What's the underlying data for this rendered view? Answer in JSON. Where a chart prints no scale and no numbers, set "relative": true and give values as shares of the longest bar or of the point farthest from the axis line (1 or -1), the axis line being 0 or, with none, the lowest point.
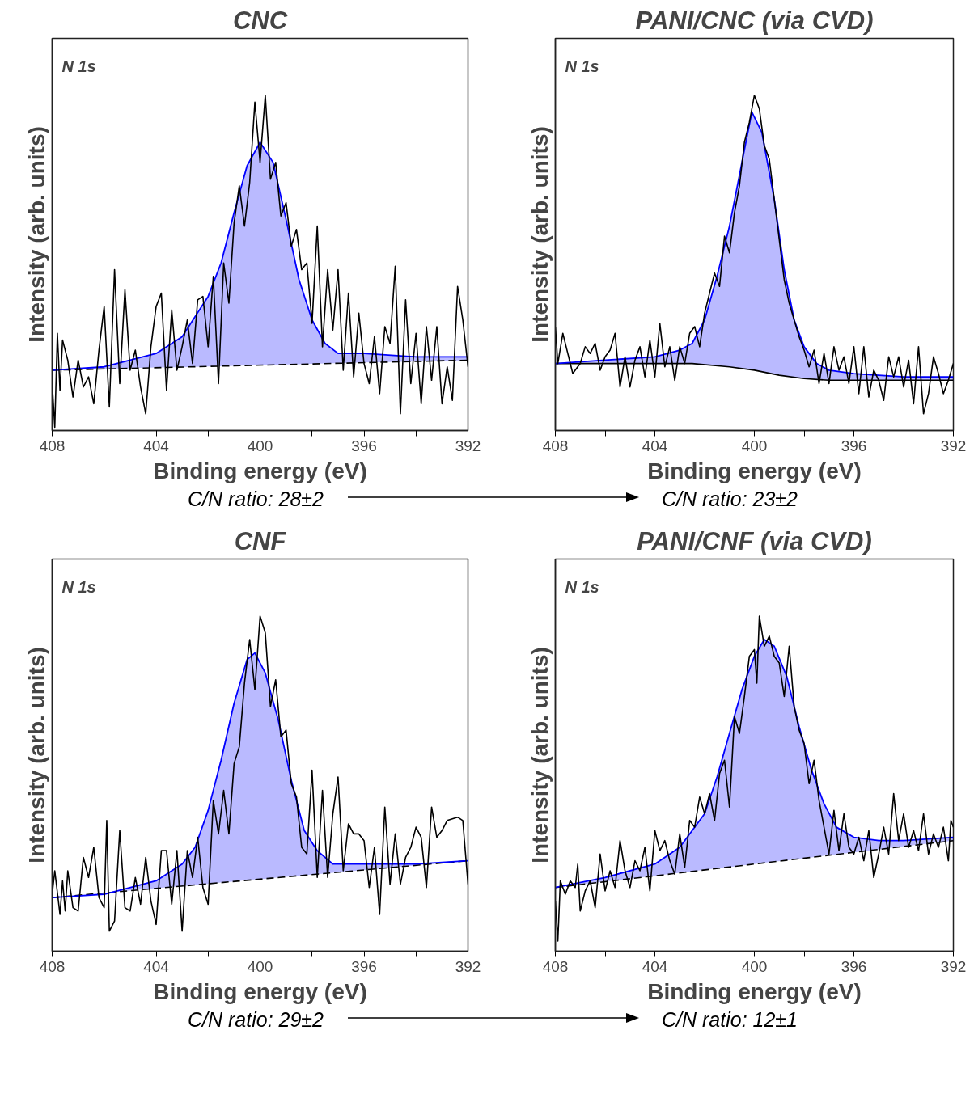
{
  "chart_data": [
    {
      "type": "line",
      "title": "CNC",
      "xlabel": "Binding energy (eV)",
      "ylabel": "Intensity (arb. units)",
      "annotations": [
        "N 1s",
        "C/N ratio: 28±2"
      ],
      "relative": true,
      "xlim": [
        408,
        392
      ],
      "xticks": [
        408,
        {
          "value": 406,
          "label": null
        },
        404,
        {
          "value": 402,
          "label": null
        },
        400,
        {
          "value": 398,
          "label": null
        },
        396,
        {
          "value": 394,
          "label": null
        },
        392
      ],
      "series": [
        {
          "color": "#000000",
          "line_style": "dashed",
          "x": [
            408,
            392
          ],
          "values": [
            0.18,
            0.21
          ]
        },
        {
          "color": "#0000ff",
          "x": [
            408,
            406,
            404,
            403,
            402,
            401.5,
            401,
            400.5,
            400,
            399.5,
            399,
            398.5,
            398,
            397.5,
            397,
            396,
            394,
            392
          ],
          "values": [
            0.18,
            0.19,
            0.23,
            0.28,
            0.4,
            0.5,
            0.65,
            0.79,
            0.86,
            0.8,
            0.63,
            0.45,
            0.33,
            0.26,
            0.23,
            0.23,
            0.22,
            0.22
          ],
          "upper": [
            0.18,
            0.19,
            0.23,
            0.28,
            0.4,
            0.5,
            0.65,
            0.79,
            0.86,
            0.8,
            0.63,
            0.45,
            0.33,
            0.26,
            0.23,
            0.23,
            0.22,
            0.22
          ],
          "lower": [
            0.18,
            0.184,
            0.188,
            0.189,
            0.191,
            0.192,
            0.193,
            0.194,
            0.195,
            0.196,
            0.197,
            0.198,
            0.199,
            0.2,
            0.201,
            0.203,
            0.206,
            0.21
          ]
        },
        {
          "color": "#000000",
          "x": [
            408,
            407.9,
            407.8,
            407.7,
            407.6,
            407.4,
            407.2,
            407,
            406.8,
            406.6,
            406.4,
            406.2,
            406,
            405.8,
            405.6,
            405.4,
            405.2,
            405,
            404.8,
            404.6,
            404.4,
            404.2,
            404,
            403.8,
            403.6,
            403.4,
            403.2,
            403,
            402.8,
            402.6,
            402.4,
            402.2,
            402,
            401.8,
            401.6,
            401.4,
            401.2,
            401,
            400.8,
            400.6,
            400.4,
            400.2,
            400,
            399.8,
            399.6,
            399.4,
            399.2,
            399,
            398.8,
            398.6,
            398.4,
            398.2,
            398,
            397.8,
            397.6,
            397.4,
            397.2,
            397,
            396.8,
            396.6,
            396.4,
            396.2,
            396,
            395.8,
            395.6,
            395.4,
            395.2,
            395,
            394.8,
            394.6,
            394.4,
            394.2,
            394,
            393.8,
            393.6,
            393.4,
            393.2,
            393,
            392.8,
            392.6,
            392.4,
            392.2,
            392
          ],
          "values": [
            0.14,
            0.01,
            0.29,
            0.12,
            0.27,
            0.21,
            0.1,
            0.21,
            0.13,
            0.16,
            0.08,
            0.24,
            0.37,
            0.07,
            0.48,
            0.14,
            0.42,
            0.18,
            0.24,
            0.13,
            0.05,
            0.25,
            0.37,
            0.41,
            0.12,
            0.36,
            0.18,
            0.25,
            0.33,
            0.2,
            0.39,
            0.4,
            0.25,
            0.46,
            0.14,
            0.5,
            0.38,
            0.62,
            0.73,
            0.61,
            0.74,
            0.98,
            0.8,
            1.0,
            0.75,
            0.8,
            0.64,
            0.68,
            0.55,
            0.6,
            0.48,
            0.5,
            0.32,
            0.61,
            0.25,
            0.48,
            0.3,
            0.48,
            0.18,
            0.41,
            0.16,
            0.35,
            0.2,
            0.14,
            0.28,
            0.11,
            0.31,
            0.26,
            0.49,
            0.05,
            0.39,
            0.14,
            0.29,
            0.08,
            0.31,
            0.15,
            0.31,
            0.08,
            0.19,
            0.09,
            0.43,
            0.33,
            0.19
          ]
        }
      ]
    },
    {
      "type": "line",
      "title": "PANI/CNC (via CVD)",
      "xlabel": "Binding energy (eV)",
      "ylabel": "Intensity (arb. units)",
      "annotations": [
        "N 1s",
        "C/N ratio: 23±2"
      ],
      "relative": true,
      "xlim": [
        408,
        392
      ],
      "xticks": [
        408,
        {
          "value": 406,
          "label": null
        },
        404,
        {
          "value": 402,
          "label": null
        },
        400,
        {
          "value": 398,
          "label": null
        },
        396,
        {
          "value": 394,
          "label": null
        },
        392
      ],
      "series": [
        {
          "color": "#000000",
          "line_style": "solid",
          "x": [
            408,
            404,
            402.5,
            401,
            400,
            399,
            398,
            397,
            392
          ],
          "values": [
            0.2,
            0.2,
            0.2,
            0.19,
            0.18,
            0.165,
            0.155,
            0.15,
            0.15
          ]
        },
        {
          "color": "#0000ff",
          "x": [
            408,
            406,
            404,
            403,
            402.5,
            402,
            401.5,
            401,
            400.5,
            400.1,
            399.7,
            399.2,
            398.8,
            398.4,
            398,
            397.5,
            397,
            396,
            394,
            392
          ],
          "values": [
            0.2,
            0.21,
            0.22,
            0.24,
            0.26,
            0.33,
            0.46,
            0.61,
            0.8,
            0.95,
            0.89,
            0.69,
            0.48,
            0.33,
            0.25,
            0.2,
            0.18,
            0.17,
            0.16,
            0.16
          ],
          "upper": [
            0.2,
            0.21,
            0.22,
            0.24,
            0.26,
            0.33,
            0.46,
            0.61,
            0.8,
            0.95,
            0.89,
            0.69,
            0.48,
            0.33,
            0.25,
            0.2,
            0.18,
            0.17,
            0.16,
            0.16
          ],
          "lower": [
            0.2,
            0.2,
            0.2,
            0.2,
            0.2,
            0.197,
            0.193,
            0.19,
            0.185,
            0.181,
            0.175,
            0.168,
            0.163,
            0.159,
            0.155,
            0.152,
            0.15,
            0.15,
            0.15,
            0.15
          ]
        },
        {
          "color": "#000000",
          "x": [
            408,
            407.9,
            407.7,
            407.5,
            407.3,
            407,
            406.8,
            406.6,
            406.4,
            406.2,
            406,
            405.8,
            405.6,
            405.4,
            405.2,
            405,
            404.8,
            404.6,
            404.4,
            404.2,
            404,
            403.8,
            403.6,
            403.4,
            403.2,
            403,
            402.8,
            402.6,
            402.4,
            402.2,
            402,
            401.8,
            401.6,
            401.4,
            401.2,
            401,
            400.8,
            400.6,
            400.4,
            400.2,
            400,
            399.8,
            399.6,
            399.4,
            399.2,
            399,
            398.8,
            398.6,
            398.4,
            398.2,
            398,
            397.8,
            397.6,
            397.4,
            397.2,
            397,
            396.8,
            396.6,
            396.4,
            396.2,
            396,
            395.8,
            395.6,
            395.4,
            395.2,
            395,
            394.8,
            394.6,
            394.4,
            394.2,
            394,
            393.8,
            393.6,
            393.4,
            393.2,
            393,
            392.8,
            392.6,
            392.4,
            392.2,
            392
          ],
          "values": [
            0.31,
            0.2,
            0.29,
            0.23,
            0.17,
            0.2,
            0.25,
            0.23,
            0.26,
            0.18,
            0.22,
            0.24,
            0.29,
            0.13,
            0.22,
            0.13,
            0.21,
            0.25,
            0.16,
            0.27,
            0.16,
            0.32,
            0.19,
            0.25,
            0.15,
            0.25,
            0.2,
            0.29,
            0.31,
            0.25,
            0.35,
            0.41,
            0.47,
            0.43,
            0.58,
            0.53,
            0.65,
            0.73,
            0.86,
            0.92,
            1.0,
            0.96,
            0.85,
            0.81,
            0.69,
            0.57,
            0.45,
            0.38,
            0.33,
            0.28,
            0.24,
            0.19,
            0.24,
            0.14,
            0.23,
            0.14,
            0.25,
            0.18,
            0.22,
            0.14,
            0.25,
            0.11,
            0.25,
            0.1,
            0.18,
            0.15,
            0.09,
            0.22,
            0.16,
            0.22,
            0.13,
            0.21,
            0.08,
            0.25,
            0.05,
            0.11,
            0.22,
            0.17,
            0.11,
            0.15,
            0.2
          ]
        }
      ]
    },
    {
      "type": "line",
      "title": "CNF",
      "xlabel": "Binding energy (eV)",
      "ylabel": "Intensity (arb. units)",
      "annotations": [
        "N 1s",
        "C/N ratio: 29±2"
      ],
      "relative": true,
      "xlim": [
        408,
        392
      ],
      "xticks": [
        408,
        {
          "value": 406,
          "label": null
        },
        404,
        {
          "value": 402,
          "label": null
        },
        400,
        {
          "value": 398,
          "label": null
        },
        396,
        {
          "value": 394,
          "label": null
        },
        392
      ],
      "series": [
        {
          "color": "#000000",
          "line_style": "dashed",
          "x": [
            408,
            392
          ],
          "values": [
            0.16,
            0.27
          ]
        },
        {
          "color": "#0000ff",
          "x": [
            408,
            406,
            404,
            403,
            402.5,
            402,
            401.5,
            401,
            400.5,
            400.2,
            399.8,
            399.3,
            398.8,
            398.3,
            397.8,
            397.2,
            396.5,
            394,
            392
          ],
          "values": [
            0.16,
            0.17,
            0.21,
            0.26,
            0.31,
            0.42,
            0.57,
            0.74,
            0.87,
            0.89,
            0.83,
            0.69,
            0.51,
            0.36,
            0.3,
            0.26,
            0.26,
            0.26,
            0.27
          ],
          "upper": [
            0.16,
            0.17,
            0.21,
            0.26,
            0.31,
            0.42,
            0.57,
            0.74,
            0.87,
            0.89,
            0.83,
            0.69,
            0.51,
            0.36,
            0.3,
            0.26,
            0.26,
            0.26,
            0.27
          ],
          "lower": [
            0.16,
            0.174,
            0.188,
            0.194,
            0.198,
            0.201,
            0.205,
            0.208,
            0.212,
            0.214,
            0.216,
            0.22,
            0.223,
            0.227,
            0.23,
            0.234,
            0.239,
            0.256,
            0.27
          ]
        },
        {
          "color": "#000000",
          "x": [
            408,
            407.9,
            407.7,
            407.6,
            407.5,
            407.4,
            407.2,
            407,
            406.8,
            406.6,
            406.4,
            406.2,
            406,
            405.9,
            405.8,
            405.6,
            405.4,
            405.2,
            405,
            404.8,
            404.6,
            404.4,
            404.2,
            404,
            403.8,
            403.6,
            403.4,
            403.2,
            403,
            402.8,
            402.6,
            402.4,
            402.2,
            402,
            401.8,
            401.6,
            401.4,
            401.2,
            401,
            400.8,
            400.6,
            400.4,
            400.2,
            400,
            399.8,
            399.6,
            399.4,
            399.2,
            399,
            398.8,
            398.6,
            398.4,
            398.2,
            398,
            397.8,
            397.6,
            397.4,
            397.2,
            397,
            396.8,
            396.6,
            396.4,
            396.2,
            396,
            395.8,
            395.6,
            395.4,
            395.2,
            395,
            394.8,
            394.6,
            394.4,
            394.2,
            394,
            393.8,
            393.6,
            393.4,
            393.2,
            393,
            392.8,
            392.4,
            392.2,
            392
          ],
          "values": [
            0.17,
            0.24,
            0.11,
            0.21,
            0.12,
            0.24,
            0.13,
            0.12,
            0.28,
            0.22,
            0.31,
            0.16,
            0.13,
            0.39,
            0.06,
            0.09,
            0.36,
            0.13,
            0.12,
            0.22,
            0.14,
            0.28,
            0.15,
            0.08,
            0.3,
            0.3,
            0.14,
            0.3,
            0.06,
            0.3,
            0.22,
            0.34,
            0.19,
            0.14,
            0.45,
            0.35,
            0.48,
            0.35,
            0.56,
            0.61,
            0.8,
            0.93,
            0.78,
            1.0,
            0.95,
            0.73,
            0.81,
            0.64,
            0.66,
            0.5,
            0.46,
            0.31,
            0.29,
            0.54,
            0.22,
            0.48,
            0.22,
            0.41,
            0.52,
            0.24,
            0.38,
            0.35,
            0.35,
            0.33,
            0.19,
            0.31,
            0.11,
            0.43,
            0.2,
            0.35,
            0.2,
            0.28,
            0.31,
            0.37,
            0.34,
            0.19,
            0.43,
            0.34,
            0.36,
            0.39,
            0.4,
            0.39,
            0.2
          ]
        }
      ]
    },
    {
      "type": "line",
      "title": "PANI/CNF (via CVD)",
      "xlabel": "Binding energy (eV)",
      "ylabel": "Intensity (arb. units)",
      "annotations": [
        "N 1s",
        "C/N ratio: 12±1"
      ],
      "relative": true,
      "xlim": [
        408,
        392
      ],
      "xticks": [
        408,
        {
          "value": 406,
          "label": null
        },
        404,
        {
          "value": 402,
          "label": null
        },
        400,
        {
          "value": 398,
          "label": null
        },
        396,
        {
          "value": 394,
          "label": null
        },
        392
      ],
      "series": [
        {
          "color": "#000000",
          "line_style": "dashed",
          "x": [
            408,
            392
          ],
          "values": [
            0.19,
            0.33
          ]
        },
        {
          "color": "#0000ff",
          "x": [
            408,
            406,
            404,
            403,
            402,
            401.5,
            401,
            400.5,
            400,
            399.6,
            399.2,
            398.7,
            398.2,
            397.7,
            397.2,
            396.7,
            396,
            395,
            394,
            392
          ],
          "values": [
            0.19,
            0.22,
            0.26,
            0.31,
            0.41,
            0.52,
            0.65,
            0.78,
            0.88,
            0.93,
            0.91,
            0.82,
            0.67,
            0.54,
            0.44,
            0.37,
            0.34,
            0.33,
            0.33,
            0.34
          ],
          "upper": [
            0.19,
            0.22,
            0.26,
            0.31,
            0.41,
            0.52,
            0.65,
            0.78,
            0.88,
            0.93,
            0.91,
            0.82,
            0.67,
            0.54,
            0.44,
            0.37,
            0.34,
            0.33,
            0.33,
            0.34
          ],
          "lower": [
            0.19,
            0.208,
            0.225,
            0.234,
            0.243,
            0.247,
            0.251,
            0.256,
            0.26,
            0.264,
            0.267,
            0.271,
            0.276,
            0.28,
            0.285,
            0.289,
            0.295,
            0.304,
            0.313,
            0.33
          ]
        },
        {
          "color": "#000000",
          "x": [
            408,
            407.9,
            407.8,
            407.6,
            407.4,
            407.2,
            407.1,
            407,
            406.8,
            406.6,
            406.4,
            406.2,
            406,
            405.8,
            405.6,
            405.4,
            405.2,
            405,
            404.8,
            404.6,
            404.4,
            404.2,
            404,
            403.8,
            403.6,
            403.4,
            403.2,
            403,
            402.8,
            402.6,
            402.4,
            402.2,
            402,
            401.8,
            401.6,
            401.4,
            401.2,
            401,
            400.8,
            400.6,
            400.4,
            400.2,
            400,
            399.9,
            399.8,
            399.6,
            399.4,
            399.2,
            399,
            398.8,
            398.6,
            398.4,
            398.2,
            398,
            397.8,
            397.6,
            397.4,
            397.2,
            397,
            396.8,
            396.6,
            396.4,
            396.2,
            396,
            395.8,
            395.6,
            395.4,
            395.2,
            395,
            394.8,
            394.6,
            394.4,
            394.2,
            394,
            393.8,
            393.6,
            393.4,
            393.2,
            393,
            392.8,
            392.6,
            392.4,
            392.2,
            392.1,
            392
          ],
          "values": [
            0.15,
            0.03,
            0.21,
            0.17,
            0.21,
            0.19,
            0.26,
            0.12,
            0.18,
            0.21,
            0.13,
            0.29,
            0.18,
            0.24,
            0.19,
            0.33,
            0.24,
            0.19,
            0.27,
            0.24,
            0.31,
            0.18,
            0.36,
            0.3,
            0.33,
            0.27,
            0.23,
            0.35,
            0.25,
            0.39,
            0.37,
            0.46,
            0.41,
            0.47,
            0.39,
            0.53,
            0.57,
            0.43,
            0.7,
            0.65,
            0.76,
            0.88,
            0.9,
            0.8,
            1.0,
            0.91,
            0.94,
            0.88,
            0.86,
            0.76,
            0.91,
            0.73,
            0.66,
            0.62,
            0.5,
            0.57,
            0.45,
            0.37,
            0.29,
            0.42,
            0.3,
            0.41,
            0.31,
            0.29,
            0.34,
            0.27,
            0.36,
            0.22,
            0.29,
            0.37,
            0.29,
            0.47,
            0.33,
            0.41,
            0.31,
            0.36,
            0.3,
            0.41,
            0.29,
            0.35,
            0.31,
            0.37,
            0.27,
            0.39,
            0.37
          ]
        }
      ]
    }
  ]
}
